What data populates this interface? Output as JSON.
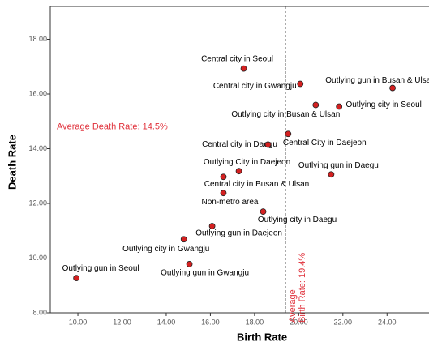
{
  "chart_data": {
    "type": "scatter",
    "x_label": "Birth Rate",
    "y_label": "Death Rate",
    "xlim": [
      8.75,
      25.9
    ],
    "ylim": [
      8,
      19.2
    ],
    "xticks": [
      {
        "value": 10,
        "label": "10.00"
      },
      {
        "value": 12,
        "label": "12.00"
      },
      {
        "value": 14,
        "label": "14.00"
      },
      {
        "value": 16,
        "label": "16.00"
      },
      {
        "value": 18,
        "label": "18.00"
      },
      {
        "value": 20,
        "label": "20.00"
      },
      {
        "value": 22,
        "label": "22.00"
      },
      {
        "value": 24,
        "label": "24.00"
      }
    ],
    "yticks": [
      {
        "value": 8,
        "label": "8.00"
      },
      {
        "value": 10,
        "label": "10.00"
      },
      {
        "value": 12,
        "label": "12.00"
      },
      {
        "value": 14,
        "label": "14.00"
      },
      {
        "value": 16,
        "label": "16.00"
      },
      {
        "value": 18,
        "label": "18.00"
      }
    ],
    "color": "#d42020",
    "labels": [
      "Outlying gun in Seoul",
      "Outlying gun in Gwangju",
      "Outlying city in Gwangju",
      "Outlying gun in Daejeon",
      "Outlying city in Daegu",
      "Non-metro area",
      "Central city in Busan & Ulsan",
      "Outlying City in Daejeon",
      "Central city in Daegu",
      "Central City in Daejeon",
      "Outlying gun in Daegu",
      "Outlying city in Busan & Ulsan",
      "Outlying city in Seoul",
      "Central city in Gwangju",
      "Central city in Seoul",
      "Outlying gun in Busan & Ulsan"
    ],
    "x": [
      9.93,
      15.05,
      14.8,
      16.08,
      18.39,
      16.59,
      16.59,
      17.29,
      18.61,
      19.52,
      21.47,
      20.77,
      21.83,
      20.07,
      17.51,
      24.25
    ],
    "values": [
      9.27,
      9.78,
      10.69,
      11.17,
      11.7,
      12.38,
      12.97,
      13.18,
      14.15,
      14.54,
      13.06,
      15.6,
      15.54,
      16.37,
      16.93,
      16.22
    ],
    "reference_lines": {
      "y": {
        "value": 14.5,
        "label": "Average Death Rate: 14.5%"
      },
      "x": {
        "value": 19.4,
        "label_lines": [
          "Average",
          "Birth Rate: 19.4%"
        ]
      }
    }
  }
}
